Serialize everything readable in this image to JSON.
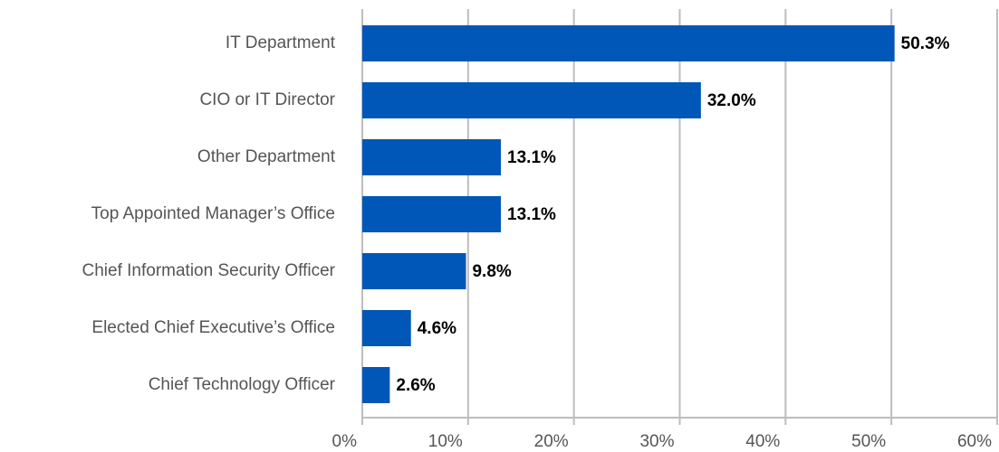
{
  "chart_data": {
    "type": "barh",
    "categories": [
      "IT Department",
      "CIO or IT Director",
      "Other Department",
      "Top Appointed Manager’s Office",
      "Chief Information Security Officer",
      "Elected Chief Executive’s Office",
      "Chief Technology Officer"
    ],
    "values": [
      50.3,
      32.0,
      13.1,
      13.1,
      9.8,
      4.6,
      2.6
    ],
    "value_labels": [
      "50.3%",
      "32.0%",
      "13.1%",
      "13.1%",
      "9.8%",
      "4.6%",
      "2.6%"
    ],
    "color": "#0057b8",
    "xlim": [
      0,
      60
    ],
    "xticks": [
      {
        "value": 0,
        "label": "0%"
      },
      {
        "value": 10,
        "label": "10%"
      },
      {
        "value": 20,
        "label": "20%"
      },
      {
        "value": 30,
        "label": "30%"
      },
      {
        "value": 40,
        "label": "40%"
      },
      {
        "value": 50,
        "label": "50%"
      },
      {
        "value": 60,
        "label": "60%"
      }
    ],
    "grid": true
  }
}
